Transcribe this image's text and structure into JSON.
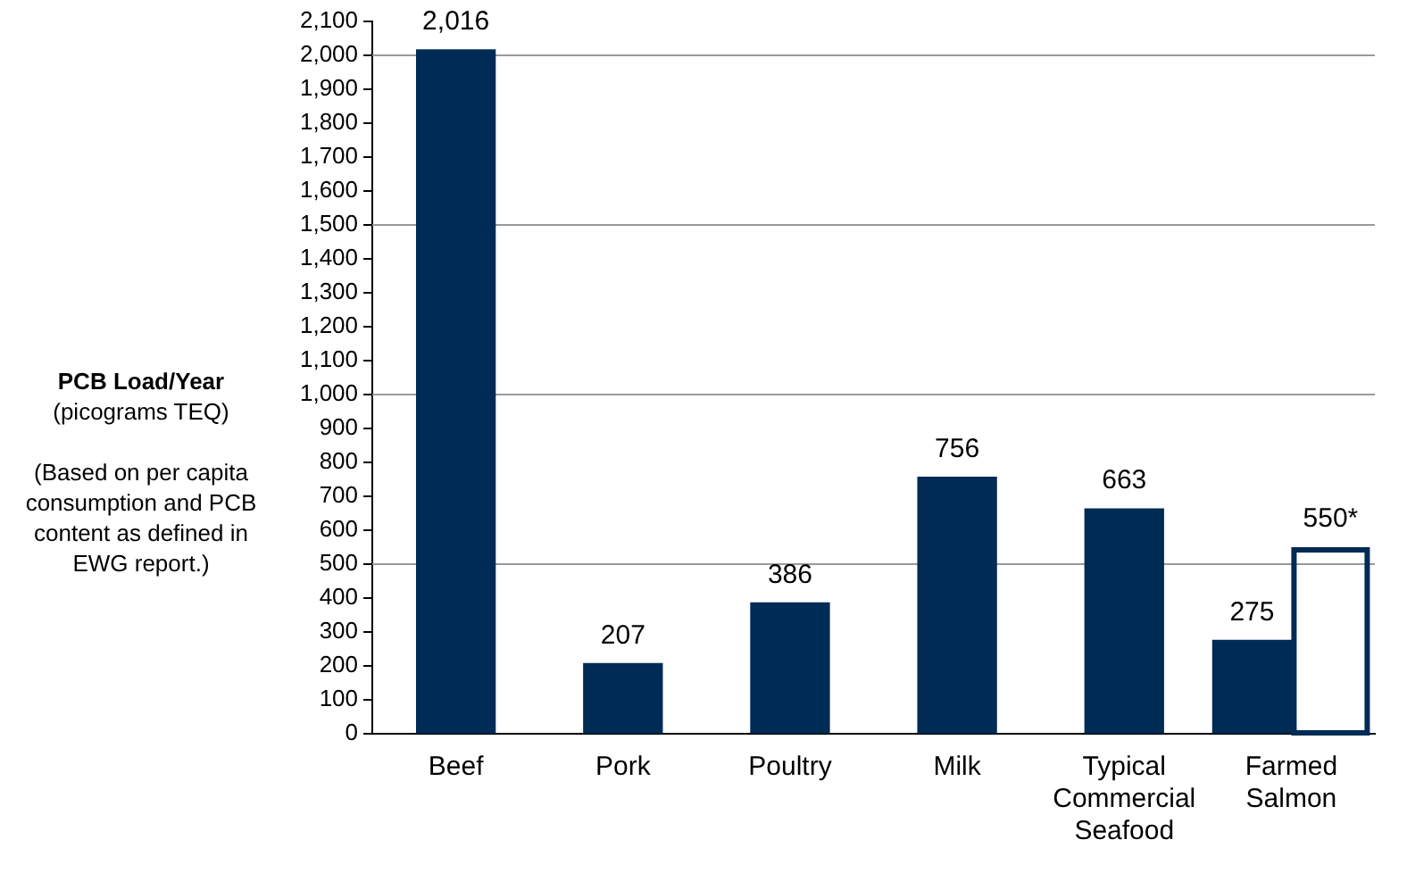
{
  "chart_data": {
    "type": "bar",
    "ylabel": "PCB Load/Year\n(picograms TEQ)",
    "annotations": [
      "(Based on per capita consumption and PCB content as defined in EWG report.)"
    ],
    "categories": [
      "Beef",
      "Pork",
      "Poultry",
      "Milk",
      "Typical Commercial Seafood",
      "Farmed Salmon"
    ],
    "series": [
      {
        "color": "#002b54",
        "values": [
          2016,
          207,
          386,
          756,
          663,
          275
        ],
        "value_labels": [
          "2,016",
          "207",
          "386",
          "756",
          "663",
          "275"
        ]
      },
      {
        "color": "#002b54",
        "values": [
          null,
          null,
          null,
          null,
          null,
          550
        ],
        "value_labels": [
          null,
          null,
          null,
          null,
          null,
          "550*"
        ]
      }
    ],
    "ylim": [
      0,
      2100
    ],
    "yticks": [
      0,
      100,
      200,
      300,
      400,
      500,
      600,
      700,
      800,
      900,
      {
        "value": 1000,
        "label": "1,000"
      },
      {
        "value": 1100,
        "label": "1,100"
      },
      {
        "value": 1200,
        "label": "1,200"
      },
      {
        "value": 1300,
        "label": "1,300"
      },
      {
        "value": 1400,
        "label": "1,400"
      },
      {
        "value": 1500,
        "label": "1,500"
      },
      {
        "value": 1600,
        "label": "1,600"
      },
      {
        "value": 1700,
        "label": "1,700"
      },
      {
        "value": 1800,
        "label": "1,800"
      },
      {
        "value": 1900,
        "label": "1,900"
      },
      {
        "value": 2000,
        "label": "2,000"
      },
      {
        "value": 2100,
        "label": "2,100"
      }
    ],
    "ref_lines": [
      {
        "axis": "y",
        "value": 500,
        "color": "#9a9a9a"
      },
      {
        "axis": "y",
        "value": 1000,
        "color": "#9a9a9a"
      },
      {
        "axis": "y",
        "value": 1500,
        "color": "#9a9a9a"
      },
      {
        "axis": "y",
        "value": 2000,
        "color": "#9a9a9a"
      }
    ],
    "grid": false,
    "legend": false
  }
}
